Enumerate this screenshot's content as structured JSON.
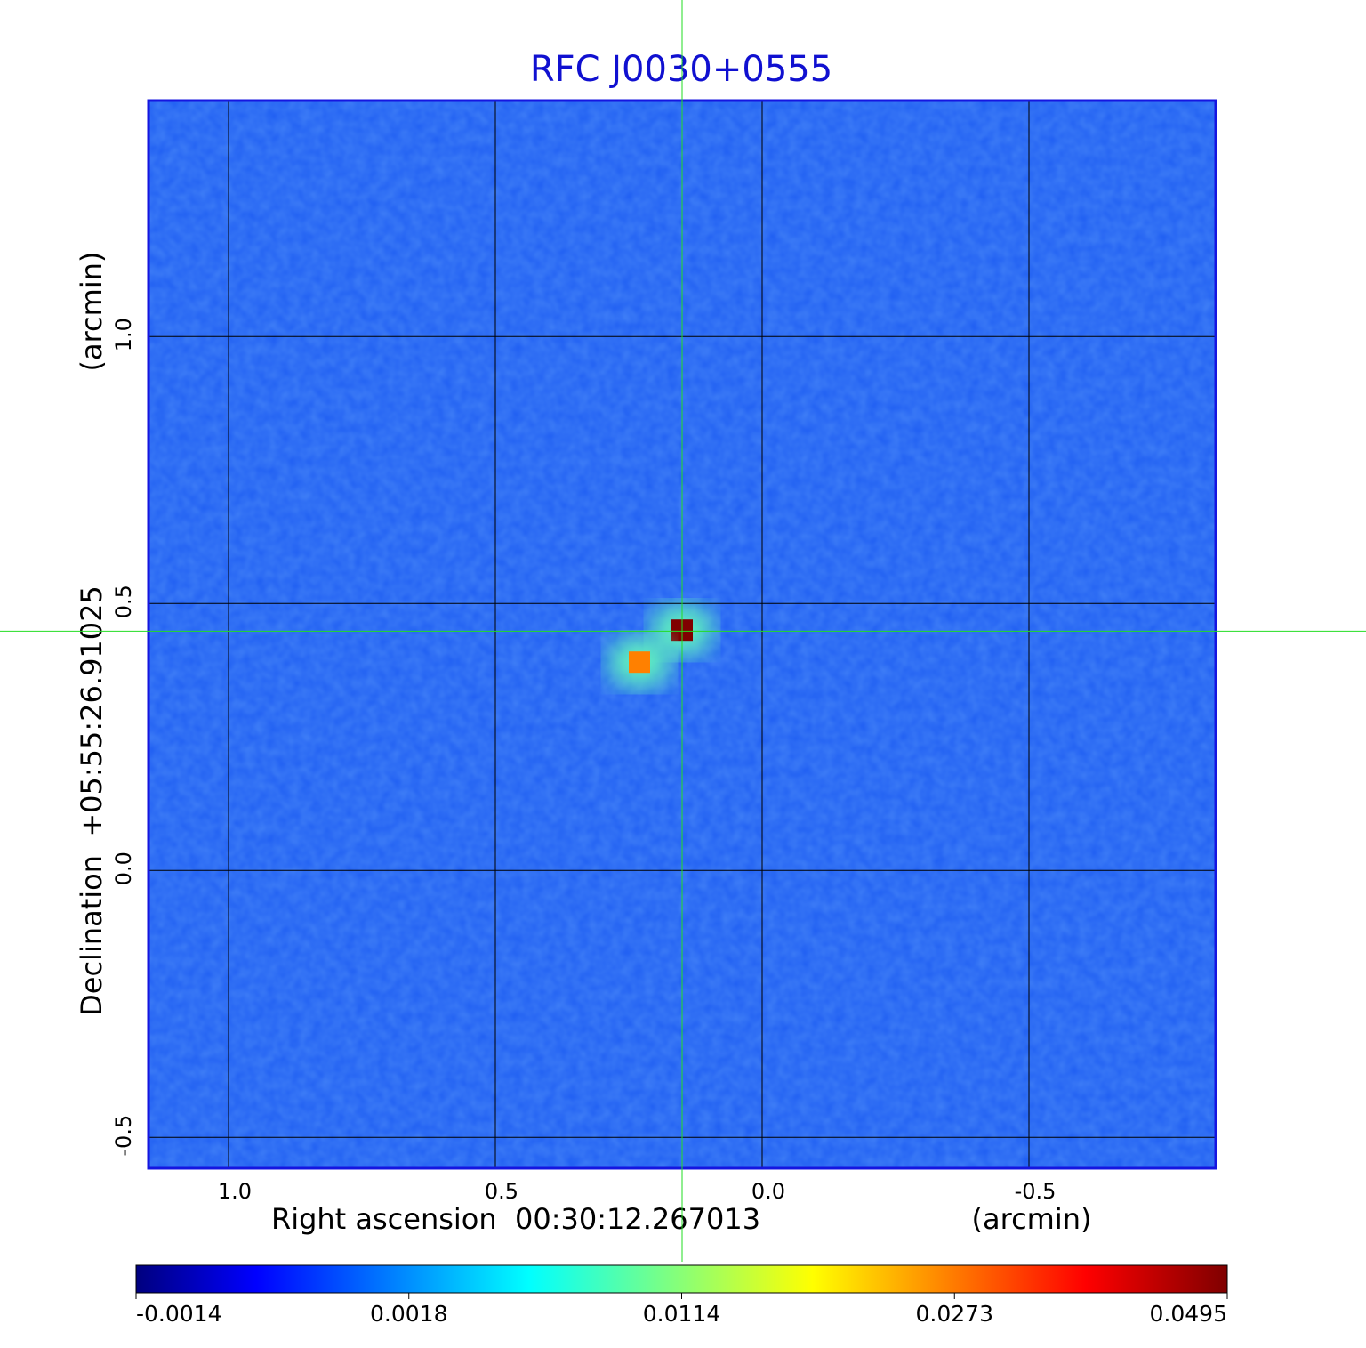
{
  "chart_data": {
    "type": "heatmap",
    "title": "RFC J0030+0555",
    "xlabel": "Right ascension  00:30:12.267013",
    "xunit": "(arcmin)",
    "ylabel": "Declination  +05:55:26.91025",
    "yunit": "(arcmin)",
    "xlim": [
      1.15,
      -0.85
    ],
    "ylim": [
      -0.558,
      1.442
    ],
    "xticks": [
      {
        "value": 1,
        "label": "1.0"
      },
      {
        "value": 0.5,
        "label": "0.5"
      },
      {
        "value": 0,
        "label": "0.0"
      },
      {
        "value": -0.5,
        "label": "-0.5"
      }
    ],
    "yticks": [
      {
        "value": -0.5,
        "label": "-0.5"
      },
      {
        "value": 0,
        "label": "0.0"
      },
      {
        "value": 0.5,
        "label": "0.5"
      },
      {
        "value": 1,
        "label": "1.0"
      }
    ],
    "grid": true,
    "background_color": "#1f5ef2",
    "crosshair": {
      "x": 0.15,
      "y": 0.448,
      "color": "#22dd22"
    },
    "sources": {
      "x": [
        0.15,
        0.23
      ],
      "y": [
        0.45,
        0.39
      ],
      "values": [
        0.0495,
        0.0273
      ]
    },
    "colorbar_ticks": [
      -0.0014,
      0.0018,
      0.0114,
      0.0273,
      0.0495
    ]
  }
}
